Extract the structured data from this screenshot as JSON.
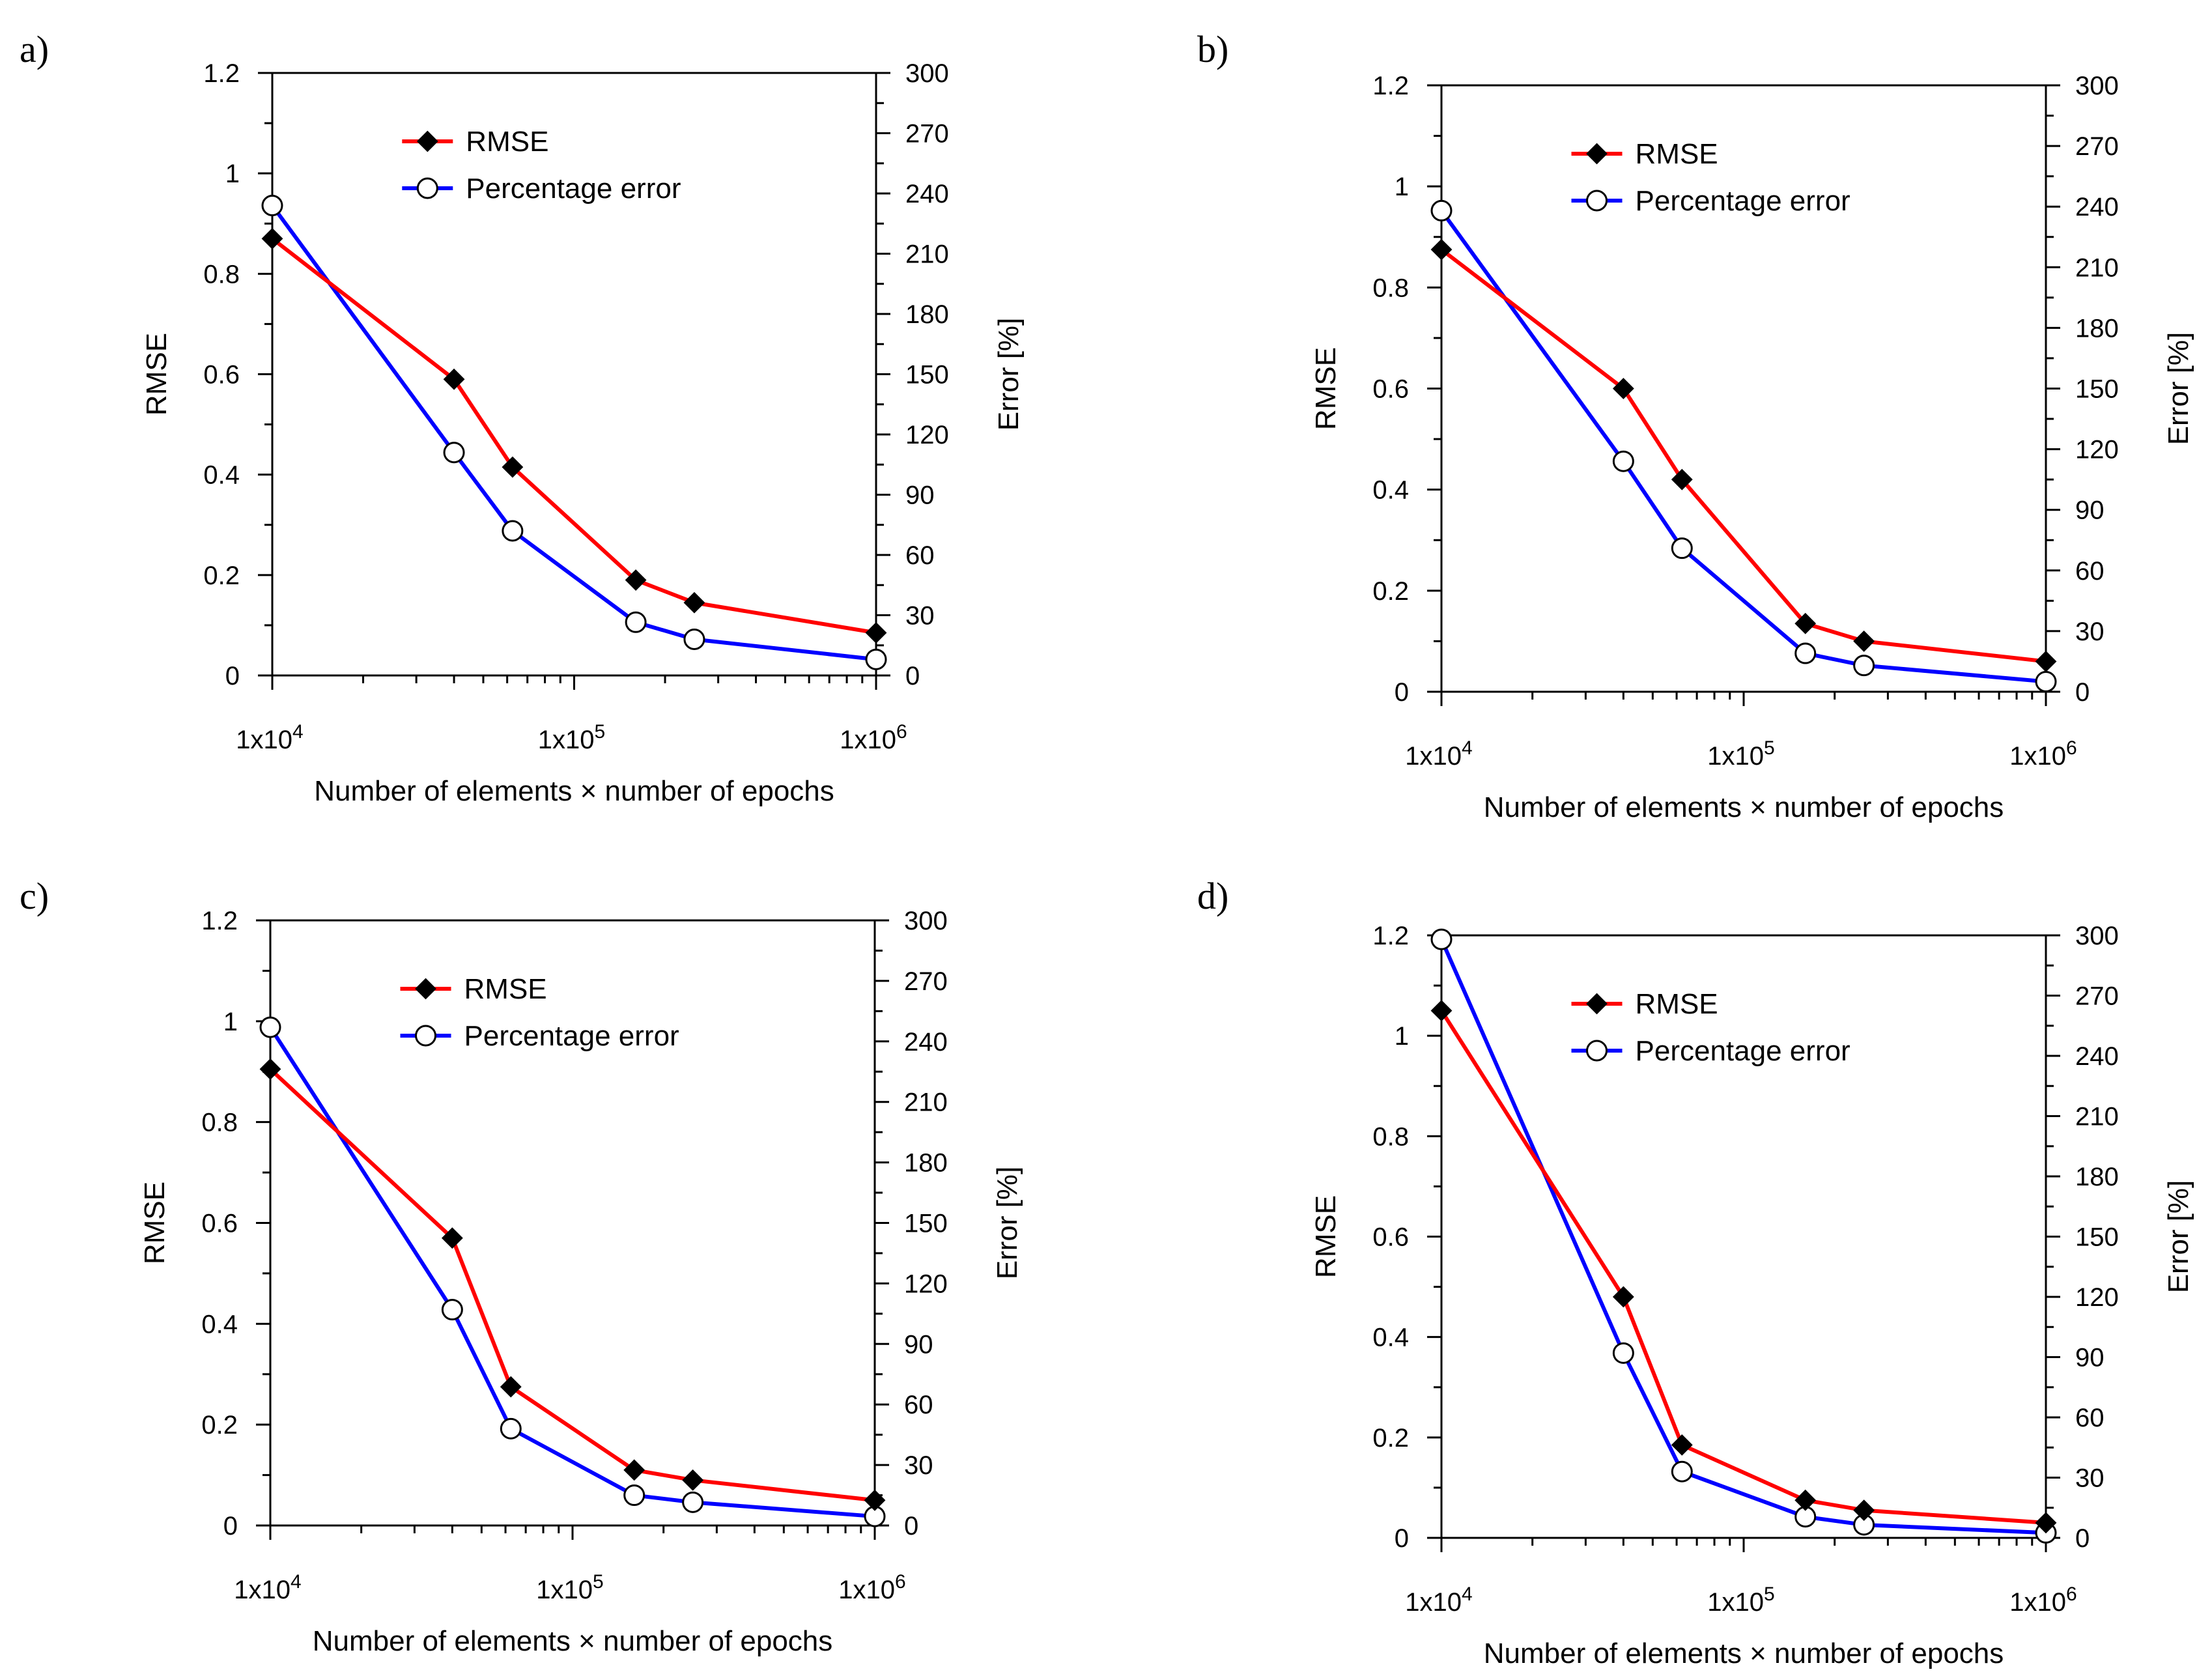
{
  "chart_data": [
    {
      "panel_label": "a)",
      "type": "line",
      "xscale": "log",
      "x": [
        10000,
        40000,
        62500,
        160000,
        250000,
        1000000
      ],
      "xlim": [
        10000,
        1000000
      ],
      "xticks": [
        {
          "label": "1x10",
          "exp": "4"
        },
        {
          "label": "1x10",
          "exp": "5"
        },
        {
          "label": "1x10",
          "exp": "6"
        }
      ],
      "xlabel": "Number of elements × number of epochs",
      "ylabel": "RMSE",
      "ylim": [
        0,
        1.2
      ],
      "yticks": [
        "0",
        "0.2",
        "0.4",
        "0.6",
        "0.8",
        "1",
        "1.2"
      ],
      "y2label": "Error [%]",
      "y2lim": [
        0,
        300
      ],
      "y2ticks": [
        "0",
        "30",
        "60",
        "90",
        "120",
        "150",
        "180",
        "210",
        "240",
        "270",
        "300"
      ],
      "series": [
        {
          "name": "RMSE",
          "axis": "left",
          "color": "#ff0000",
          "marker": "diamond",
          "values": [
            0.87,
            0.59,
            0.415,
            0.19,
            0.145,
            0.085
          ]
        },
        {
          "name": "Percentage error",
          "axis": "right",
          "color": "#0000ff",
          "marker": "circle",
          "values": [
            234,
            111,
            72,
            26.5,
            18,
            8
          ]
        }
      ]
    },
    {
      "panel_label": "b)",
      "type": "line",
      "xscale": "log",
      "x": [
        10000,
        40000,
        62500,
        160000,
        250000,
        1000000
      ],
      "xlim": [
        10000,
        1000000
      ],
      "xticks": [
        {
          "label": "1x10",
          "exp": "4"
        },
        {
          "label": "1x10",
          "exp": "5"
        },
        {
          "label": "1x10",
          "exp": "6"
        }
      ],
      "xlabel": "Number of elements × number of epochs",
      "ylabel": "RMSE",
      "ylim": [
        0,
        1.2
      ],
      "yticks": [
        "0",
        "0.2",
        "0.4",
        "0.6",
        "0.8",
        "1",
        "1.2"
      ],
      "y2label": "Error [%]",
      "y2lim": [
        0,
        300
      ],
      "y2ticks": [
        "0",
        "30",
        "60",
        "90",
        "120",
        "150",
        "180",
        "210",
        "240",
        "270",
        "300"
      ],
      "series": [
        {
          "name": "RMSE",
          "axis": "left",
          "color": "#ff0000",
          "marker": "diamond",
          "values": [
            0.875,
            0.6,
            0.42,
            0.135,
            0.1,
            0.06
          ]
        },
        {
          "name": "Percentage error",
          "axis": "right",
          "color": "#0000ff",
          "marker": "circle",
          "values": [
            238,
            114,
            71,
            19,
            13,
            5
          ]
        }
      ]
    },
    {
      "panel_label": "c)",
      "type": "line",
      "xscale": "log",
      "x": [
        10000,
        40000,
        62500,
        160000,
        250000,
        1000000
      ],
      "xlim": [
        10000,
        1000000
      ],
      "xticks": [
        {
          "label": "1x10",
          "exp": "4"
        },
        {
          "label": "1x10",
          "exp": "5"
        },
        {
          "label": "1x10",
          "exp": "6"
        }
      ],
      "xlabel": "Number of elements × number of epochs",
      "ylabel": "RMSE",
      "ylim": [
        0,
        1.2
      ],
      "yticks": [
        "0",
        "0.2",
        "0.4",
        "0.6",
        "0.8",
        "1",
        "1.2"
      ],
      "y2label": "Error [%]",
      "y2lim": [
        0,
        300
      ],
      "y2ticks": [
        "0",
        "30",
        "60",
        "90",
        "120",
        "150",
        "180",
        "210",
        "240",
        "270",
        "300"
      ],
      "series": [
        {
          "name": "RMSE",
          "axis": "left",
          "color": "#ff0000",
          "marker": "diamond",
          "values": [
            0.905,
            0.57,
            0.275,
            0.11,
            0.09,
            0.05
          ]
        },
        {
          "name": "Percentage error",
          "axis": "right",
          "color": "#0000ff",
          "marker": "circle",
          "values": [
            247,
            107,
            48,
            15,
            11.5,
            4.5
          ]
        }
      ]
    },
    {
      "panel_label": "d)",
      "type": "line",
      "xscale": "log",
      "x": [
        10000,
        40000,
        62500,
        160000,
        250000,
        1000000
      ],
      "xlim": [
        10000,
        1000000
      ],
      "xticks": [
        {
          "label": "1x10",
          "exp": "4"
        },
        {
          "label": "1x10",
          "exp": "5"
        },
        {
          "label": "1x10",
          "exp": "6"
        }
      ],
      "xlabel": "Number of elements × number of epochs",
      "ylabel": "RMSE",
      "ylim": [
        0,
        1.2
      ],
      "yticks": [
        "0",
        "0.2",
        "0.4",
        "0.6",
        "0.8",
        "1",
        "1.2"
      ],
      "y2label": "Error [%]",
      "y2lim": [
        0,
        300
      ],
      "y2ticks": [
        "0",
        "30",
        "60",
        "90",
        "120",
        "150",
        "180",
        "210",
        "240",
        "270",
        "300"
      ],
      "series": [
        {
          "name": "RMSE",
          "axis": "left",
          "color": "#ff0000",
          "marker": "diamond",
          "values": [
            1.05,
            0.48,
            0.185,
            0.075,
            0.055,
            0.03
          ]
        },
        {
          "name": "Percentage error",
          "axis": "right",
          "color": "#0000ff",
          "marker": "circle",
          "values": [
            298,
            92,
            33,
            10.5,
            6.5,
            2.5
          ]
        }
      ]
    }
  ]
}
